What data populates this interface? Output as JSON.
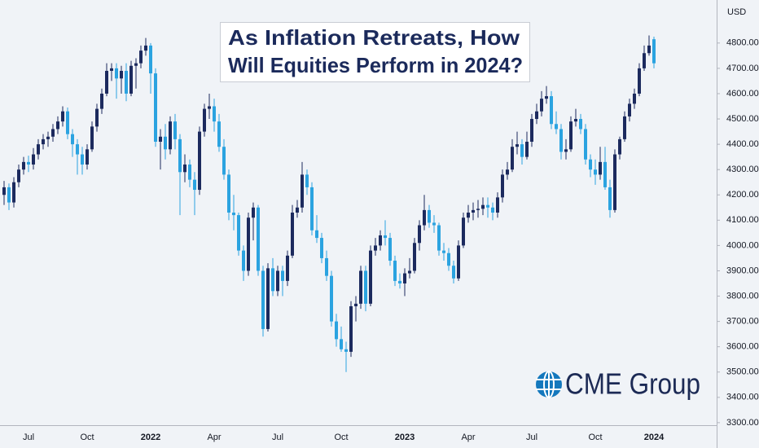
{
  "chart_data": {
    "type": "candlestick",
    "title_lines": [
      "As Inflation Retreats, How",
      "Will Equities Perform in 2024?"
    ],
    "currency": "USD",
    "logo_text": "CME Group",
    "up_color": "#1c2a5e",
    "down_color": "#2ba3e0",
    "categories": [
      null,
      null,
      null,
      null,
      null,
      "Jul",
      null,
      null,
      null,
      null,
      null,
      null,
      null,
      null,
      null,
      null,
      null,
      "Oct",
      null,
      null,
      null,
      null,
      null,
      null,
      null,
      null,
      null,
      null,
      null,
      null,
      "2022",
      null,
      null,
      null,
      null,
      null,
      null,
      null,
      null,
      null,
      null,
      null,
      null,
      "Apr",
      null,
      null,
      null,
      null,
      null,
      null,
      null,
      null,
      null,
      null,
      null,
      null,
      "Jul",
      null,
      null,
      null,
      null,
      null,
      null,
      null,
      null,
      null,
      null,
      null,
      null,
      "Oct",
      null,
      null,
      null,
      null,
      null,
      null,
      null,
      null,
      null,
      null,
      null,
      null,
      "2023",
      null,
      null,
      null,
      null,
      null,
      null,
      null,
      null,
      null,
      null,
      null,
      null,
      "Apr",
      null,
      null,
      null,
      null,
      null,
      null,
      null,
      null,
      null,
      null,
      null,
      null,
      "Jul",
      null,
      null,
      null,
      null,
      null,
      null,
      null,
      null,
      null,
      null,
      null,
      null,
      "Oct",
      null,
      null,
      null,
      null,
      null,
      null,
      null,
      null,
      null,
      null,
      null,
      "2024"
    ],
    "open": [
      4200,
      4230,
      4170,
      4250,
      4300,
      4330,
      4320,
      4360,
      4400,
      4420,
      4430,
      4460,
      4490,
      4530,
      4440,
      4400,
      4360,
      4320,
      4380,
      4470,
      4540,
      4600,
      4690,
      4700,
      4660,
      4690,
      4600,
      4710,
      4720,
      4770,
      4790,
      4680,
      4410,
      4430,
      4380,
      4490,
      4420,
      4290,
      4320,
      4260,
      4220,
      4450,
      4540,
      4550,
      4490,
      4390,
      4280,
      4130,
      4120,
      3980,
      3900,
      4110,
      4150,
      3900,
      3670,
      3910,
      3820,
      3900,
      3860,
      3960,
      4130,
      4150,
      4280,
      4230,
      4060,
      4030,
      3950,
      3880,
      3700,
      3630,
      3590,
      3580,
      3760,
      3770,
      3900,
      3770,
      3980,
      4000,
      4040,
      4030,
      3940,
      3860,
      3850,
      3890,
      3900,
      4010,
      4080,
      4140,
      4090,
      4080,
      3980,
      3970,
      3920,
      3870,
      4000,
      4110,
      4130,
      4140,
      4145,
      4160,
      4150,
      4130,
      4190,
      4280,
      4300,
      4390,
      4400,
      4350,
      4410,
      4500,
      4530,
      4580,
      4590,
      4480,
      4460,
      4370,
      4380,
      4490,
      4500,
      4460,
      4340,
      4300,
      4280,
      4330,
      4230,
      4140,
      4360,
      4420,
      4510,
      4560,
      4600,
      4700,
      4760,
      4815
    ],
    "high": [
      4255,
      4245,
      4270,
      4320,
      4350,
      4355,
      4385,
      4420,
      4440,
      4450,
      4480,
      4510,
      4550,
      4545,
      4460,
      4420,
      4390,
      4400,
      4490,
      4560,
      4620,
      4720,
      4720,
      4720,
      4710,
      4720,
      4730,
      4740,
      4790,
      4820,
      4800,
      4700,
      4460,
      4480,
      4510,
      4520,
      4440,
      4360,
      4340,
      4290,
      4470,
      4560,
      4600,
      4580,
      4520,
      4420,
      4300,
      4200,
      4130,
      4000,
      4130,
      4170,
      4160,
      3920,
      3930,
      3950,
      3920,
      3920,
      3980,
      4160,
      4180,
      4330,
      4300,
      4250,
      4120,
      4050,
      3980,
      3900,
      3730,
      3680,
      3620,
      3780,
      3800,
      3920,
      3920,
      4000,
      4030,
      4060,
      4100,
      4050,
      3960,
      3890,
      3910,
      3950,
      4030,
      4100,
      4200,
      4160,
      4120,
      4090,
      4010,
      3990,
      3940,
      4020,
      4130,
      4160,
      4170,
      4180,
      4190,
      4190,
      4170,
      4210,
      4300,
      4330,
      4420,
      4450,
      4420,
      4450,
      4520,
      4560,
      4610,
      4630,
      4610,
      4530,
      4480,
      4420,
      4510,
      4540,
      4520,
      4480,
      4360,
      4340,
      4390,
      4390,
      4260,
      4380,
      4430,
      4530,
      4580,
      4620,
      4720,
      4790,
      4830,
      4825
    ],
    "low": [
      4160,
      4140,
      4150,
      4230,
      4280,
      4290,
      4300,
      4340,
      4380,
      4390,
      4410,
      4440,
      4470,
      4420,
      4350,
      4280,
      4280,
      4300,
      4370,
      4450,
      4520,
      4590,
      4650,
      4580,
      4600,
      4570,
      4590,
      4620,
      4700,
      4750,
      4600,
      4390,
      4300,
      4340,
      4360,
      4380,
      4120,
      4250,
      4230,
      4120,
      4200,
      4430,
      4500,
      4450,
      4370,
      4260,
      4100,
      4060,
      3960,
      3860,
      3880,
      4020,
      3880,
      3640,
      3660,
      3800,
      3800,
      3800,
      3840,
      3950,
      4110,
      4130,
      4200,
      4040,
      4010,
      3930,
      3860,
      3680,
      3600,
      3580,
      3500,
      3560,
      3700,
      3750,
      3740,
      3760,
      3960,
      3980,
      4000,
      3920,
      3840,
      3830,
      3800,
      3870,
      3890,
      3980,
      4060,
      4070,
      4050,
      3960,
      3940,
      3900,
      3850,
      3860,
      3990,
      4090,
      4100,
      4110,
      4120,
      4110,
      4100,
      4110,
      4170,
      4260,
      4290,
      4360,
      4320,
      4340,
      4390,
      4480,
      4510,
      4560,
      4460,
      4440,
      4340,
      4340,
      4370,
      4470,
      4440,
      4320,
      4270,
      4240,
      4260,
      4220,
      4110,
      4130,
      4340,
      4410,
      4490,
      4540,
      4590,
      4690,
      4750,
      4700
    ],
    "close": [
      4230,
      4170,
      4250,
      4300,
      4330,
      4320,
      4360,
      4400,
      4420,
      4430,
      4460,
      4490,
      4530,
      4440,
      4400,
      4360,
      4320,
      4380,
      4470,
      4540,
      4600,
      4690,
      4700,
      4660,
      4690,
      4600,
      4710,
      4720,
      4770,
      4790,
      4680,
      4410,
      4430,
      4380,
      4490,
      4420,
      4290,
      4320,
      4260,
      4220,
      4450,
      4540,
      4550,
      4490,
      4390,
      4280,
      4130,
      4120,
      3980,
      3900,
      4110,
      4150,
      3900,
      3670,
      3910,
      3820,
      3900,
      3860,
      3960,
      4130,
      4150,
      4280,
      4230,
      4060,
      4030,
      3950,
      3880,
      3700,
      3630,
      3590,
      3580,
      3760,
      3770,
      3900,
      3770,
      3980,
      4000,
      4040,
      4030,
      3940,
      3860,
      3850,
      3890,
      3900,
      4010,
      4080,
      4140,
      4090,
      4080,
      3980,
      3970,
      3920,
      3870,
      4000,
      4110,
      4130,
      4140,
      4145,
      4160,
      4150,
      4130,
      4190,
      4280,
      4300,
      4390,
      4400,
      4350,
      4410,
      4500,
      4530,
      4580,
      4590,
      4480,
      4460,
      4370,
      4380,
      4490,
      4500,
      4460,
      4340,
      4300,
      4280,
      4330,
      4230,
      4140,
      4360,
      4420,
      4510,
      4560,
      4600,
      4700,
      4760,
      4790,
      4720
    ],
    "ylim": [
      3290,
      4970
    ],
    "yticks": [
      {
        "value": 3300,
        "label": "3300.00"
      },
      {
        "value": 3400,
        "label": "3400.00"
      },
      {
        "value": 3500,
        "label": "3500.00"
      },
      {
        "value": 3600,
        "label": "3600.00"
      },
      {
        "value": 3700,
        "label": "3700.00"
      },
      {
        "value": 3800,
        "label": "3800.00"
      },
      {
        "value": 3900,
        "label": "3900.00"
      },
      {
        "value": 4000,
        "label": "4000.00"
      },
      {
        "value": 4100,
        "label": "4100.00"
      },
      {
        "value": 4200,
        "label": "4200.00"
      },
      {
        "value": 4300,
        "label": "4300.00"
      },
      {
        "value": 4400,
        "label": "4400.00"
      },
      {
        "value": 4500,
        "label": "4500.00"
      },
      {
        "value": 4600,
        "label": "4600.00"
      },
      {
        "value": 4700,
        "label": "4700.00"
      },
      {
        "value": 4800,
        "label": "4800.00"
      }
    ],
    "grid": false
  }
}
